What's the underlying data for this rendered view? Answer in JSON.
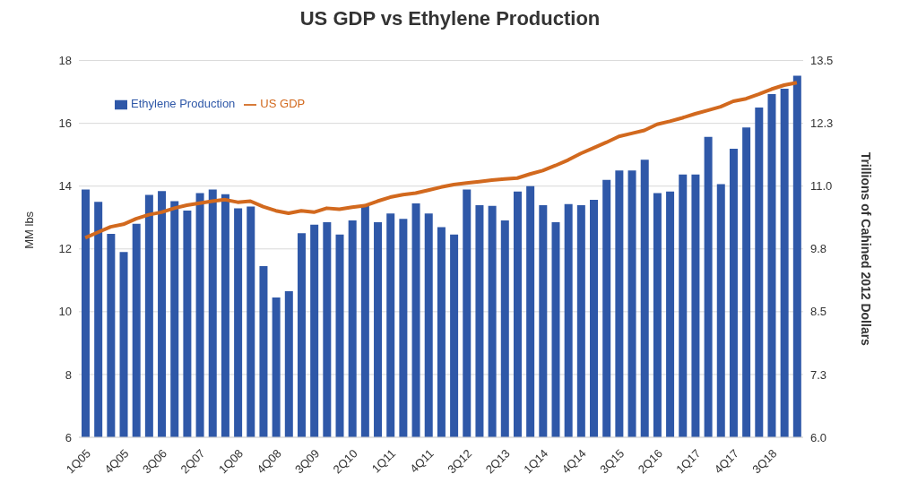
{
  "chart_data": {
    "type": "bar",
    "title": "US GDP vs Ethylene Production",
    "ylabel": "MM lbs",
    "y2label": "Trillions of Cahined 2012 Dollars",
    "categories": [
      "1Q05",
      null,
      null,
      "4Q05",
      null,
      null,
      "3Q06",
      null,
      null,
      "2Q07",
      null,
      null,
      "1Q08",
      null,
      null,
      "4Q08",
      null,
      null,
      "3Q09",
      null,
      null,
      "2Q10",
      null,
      null,
      "1Q11",
      null,
      null,
      "4Q11",
      null,
      null,
      "3Q12",
      null,
      null,
      "2Q13",
      null,
      null,
      "1Q14",
      null,
      null,
      "4Q14",
      null,
      null,
      "3Q15",
      null,
      null,
      "2Q16",
      null,
      null,
      "1Q17",
      null,
      null,
      "4Q17",
      null,
      null,
      "3Q18",
      null,
      null
    ],
    "series": [
      {
        "name": "Ethylene Production",
        "color": "#2f58a8",
        "values": [
          13.89,
          13.5,
          12.48,
          11.9,
          12.8,
          13.72,
          13.84,
          13.52,
          13.22,
          13.78,
          13.89,
          13.74,
          13.29,
          13.35,
          11.45,
          10.45,
          10.65,
          12.5,
          12.77,
          12.85,
          12.46,
          12.91,
          13.39,
          12.85,
          13.13,
          12.96,
          13.45,
          13.13,
          12.69,
          12.46,
          13.89,
          13.39,
          13.37,
          12.91,
          13.83,
          14.0,
          13.39,
          12.85,
          13.43,
          13.39,
          13.56,
          14.2,
          14.5,
          14.5,
          14.84,
          13.78,
          13.83,
          14.37,
          14.37,
          15.57,
          14.06,
          15.19,
          15.87,
          16.5,
          16.93,
          17.1,
          17.52
        ]
      },
      {
        "name": "US GDP",
        "type": "line",
        "axis": "y2",
        "color": "#d2691e",
        "values": [
          9.97,
          10.08,
          10.19,
          10.24,
          10.35,
          10.43,
          10.48,
          10.56,
          10.62,
          10.66,
          10.7,
          10.73,
          10.68,
          10.7,
          10.59,
          10.51,
          10.46,
          10.51,
          10.48,
          10.56,
          10.54,
          10.58,
          10.61,
          10.7,
          10.78,
          10.83,
          10.86,
          10.92,
          10.98,
          11.03,
          11.06,
          11.09,
          11.12,
          11.14,
          11.16,
          11.24,
          11.31,
          11.41,
          11.52,
          11.65,
          11.76,
          11.87,
          11.99,
          12.05,
          12.11,
          12.23,
          12.29,
          12.36,
          12.44,
          12.51,
          12.58,
          12.69,
          12.74,
          12.83,
          12.93,
          13.01,
          13.06
        ]
      }
    ],
    "ylim": [
      6,
      18
    ],
    "yticks": [
      6,
      8,
      10,
      12,
      14,
      16,
      18
    ],
    "y2lim": [
      6,
      13.5
    ],
    "y2ticks": [
      {
        "value": 6,
        "label": "6.0"
      },
      {
        "value": 7.25,
        "label": "7.3"
      },
      {
        "value": 8.5,
        "label": "8.5"
      },
      {
        "value": 9.75,
        "label": "9.8"
      },
      {
        "value": 11,
        "label": "11.0"
      },
      {
        "value": 12.25,
        "label": "12.3"
      },
      {
        "value": 13.5,
        "label": "13.5"
      }
    ],
    "grid": "y",
    "legend": "top left",
    "marker": "none",
    "line_style": "solid"
  }
}
